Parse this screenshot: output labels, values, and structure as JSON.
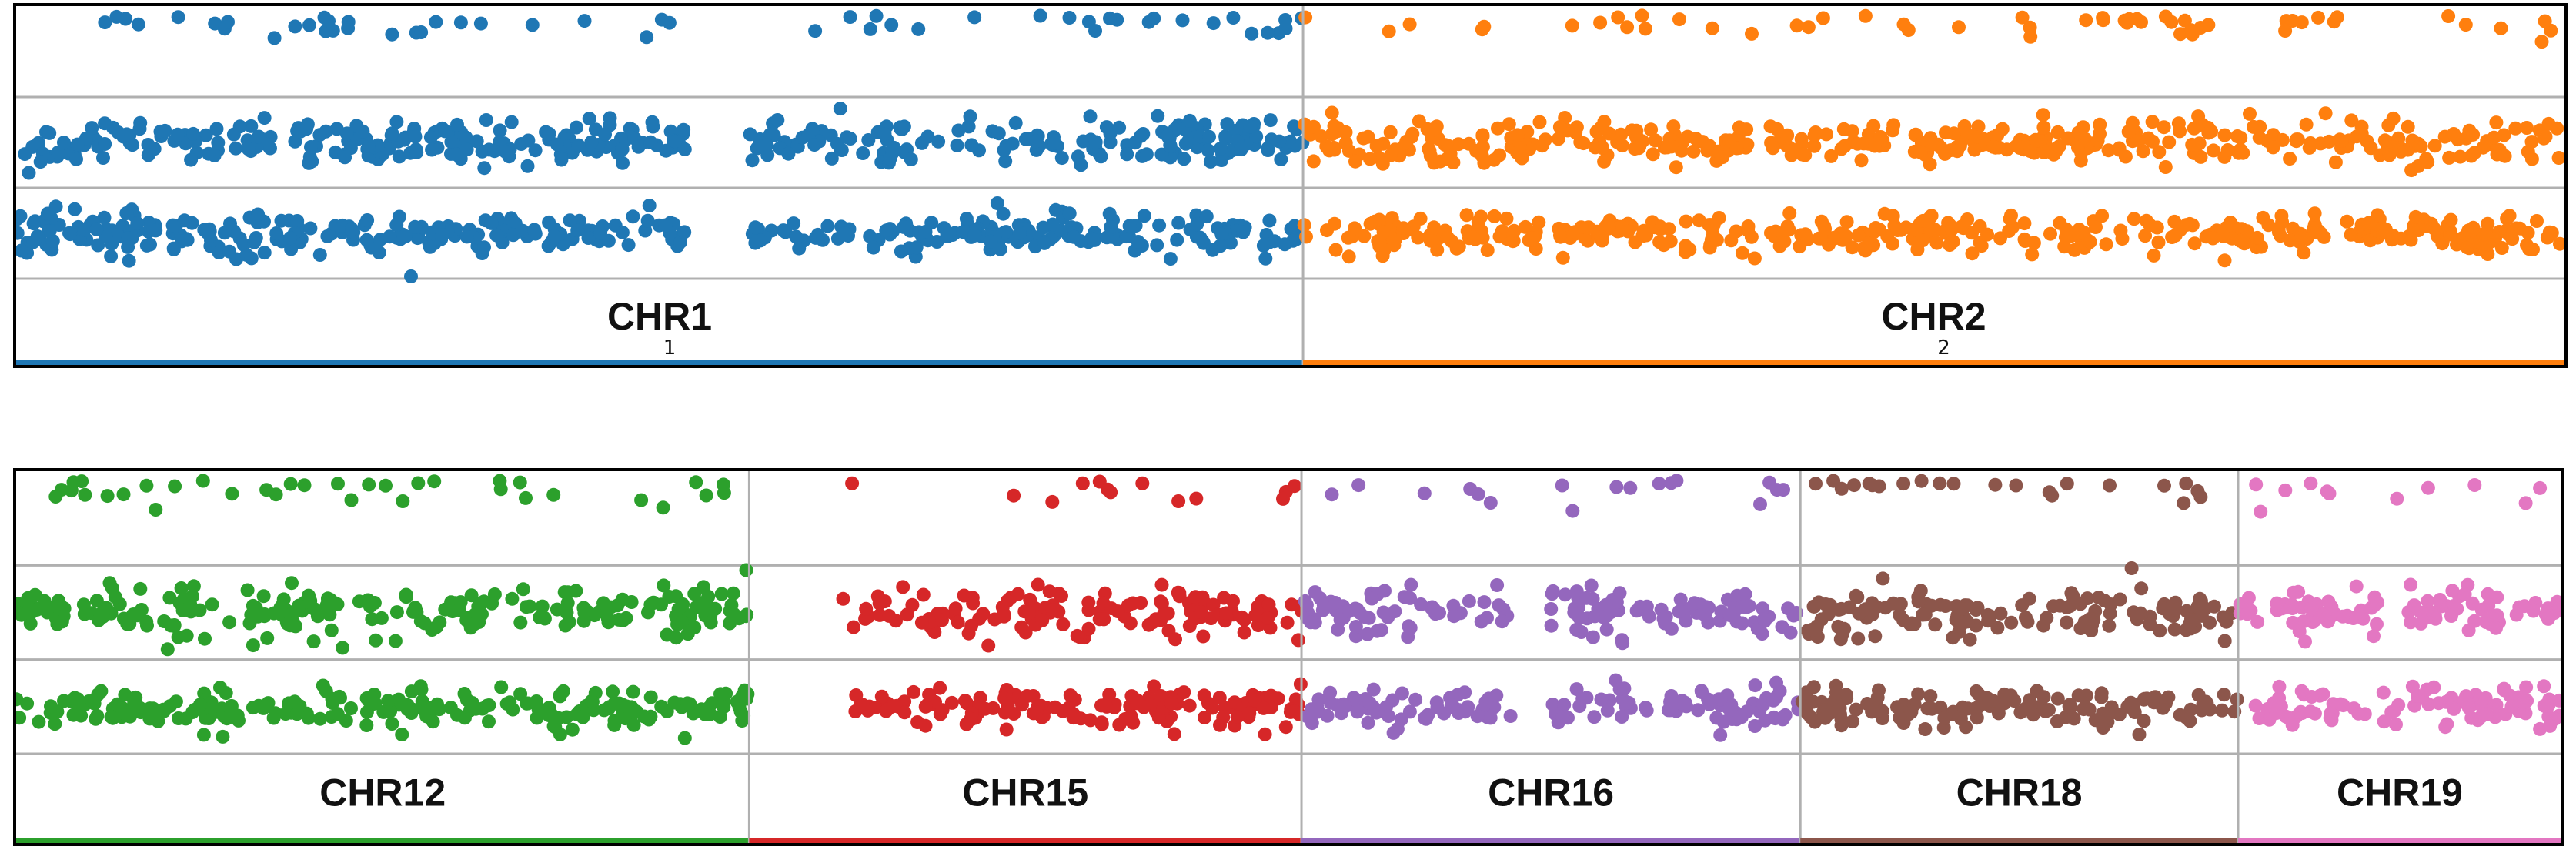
{
  "chart_data": [
    {
      "type": "scatter",
      "rows": [
        {
          "y_center": 0.5,
          "spread": 0.07
        },
        {
          "y_center": 0.0,
          "spread": 0.06
        },
        {
          "y_center": -0.5,
          "spread": 0.05
        }
      ],
      "chromosomes": [
        {
          "label": "CHR1",
          "tick": "1",
          "color": "#1f77b4",
          "width_fraction": 0.505,
          "gap": [
            0.52,
            0.57
          ]
        },
        {
          "label": "CHR2",
          "tick": "2",
          "color": "#ff7f0e",
          "width_fraction": 0.495,
          "gap": [
            0.36,
            0.37
          ]
        }
      ]
    },
    {
      "type": "scatter",
      "rows": [
        {
          "y_center": 0.5,
          "spread": 0.07
        },
        {
          "y_center": 0.0,
          "spread": 0.06
        },
        {
          "y_center": -0.5,
          "spread": 0.05
        }
      ],
      "chromosomes": [
        {
          "label": "CHR12",
          "tick": "",
          "color": "#2ca02c",
          "width_fraction": 0.288,
          "gap": null
        },
        {
          "label": "CHR15",
          "tick": "",
          "color": "#d62728",
          "width_fraction": 0.217,
          "gap": [
            0.0,
            0.17
          ]
        },
        {
          "label": "CHR16",
          "tick": "",
          "color": "#9467bd",
          "width_fraction": 0.196,
          "gap": [
            0.42,
            0.5
          ]
        },
        {
          "label": "CHR18",
          "tick": "",
          "color": "#8c564b",
          "width_fraction": 0.172,
          "gap": null
        },
        {
          "label": "CHR19",
          "tick": "",
          "color": "#e377c2",
          "width_fraction": 0.127,
          "gap": null
        }
      ]
    }
  ]
}
